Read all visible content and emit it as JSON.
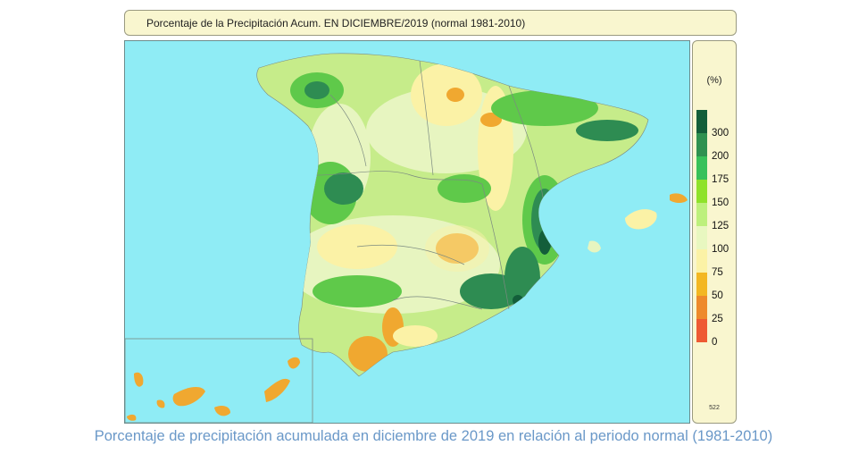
{
  "title": "Porcentaje de la Precipitación Acum. EN  DICIEMBRE/2019  (normal 1981-2010)",
  "legend": {
    "unit": "(%)",
    "classes": [
      {
        "label": "300",
        "color": "#135e3a"
      },
      {
        "label": "200",
        "color": "#2f9150"
      },
      {
        "label": "175",
        "color": "#38c15a"
      },
      {
        "label": "150",
        "color": "#8fe22a"
      },
      {
        "label": "125",
        "color": "#bdf07c"
      },
      {
        "label": "100",
        "color": "#e8f7c0"
      },
      {
        "label": "75",
        "color": "#fbf2a6"
      },
      {
        "label": "50",
        "color": "#f3b722"
      },
      {
        "label": "25",
        "color": "#ee8a2b"
      },
      {
        "label": "0",
        "color": "#ee5a33"
      }
    ],
    "code": "522"
  },
  "map_colors": {
    "sea": "#8fecf5",
    "land_base": "#c6ec8a",
    "land_light": "#e7f5c0",
    "green": "#5fc94a",
    "dark_green": "#2e8c52",
    "darkest": "#135e3a",
    "yellow": "#fbf2a6",
    "orange": "#f0a830",
    "border": "#7b8a80"
  },
  "caption": "Porcentaje de precipitación acumulada en diciembre de 2019 en relación al periodo normal (1981-2010)"
}
